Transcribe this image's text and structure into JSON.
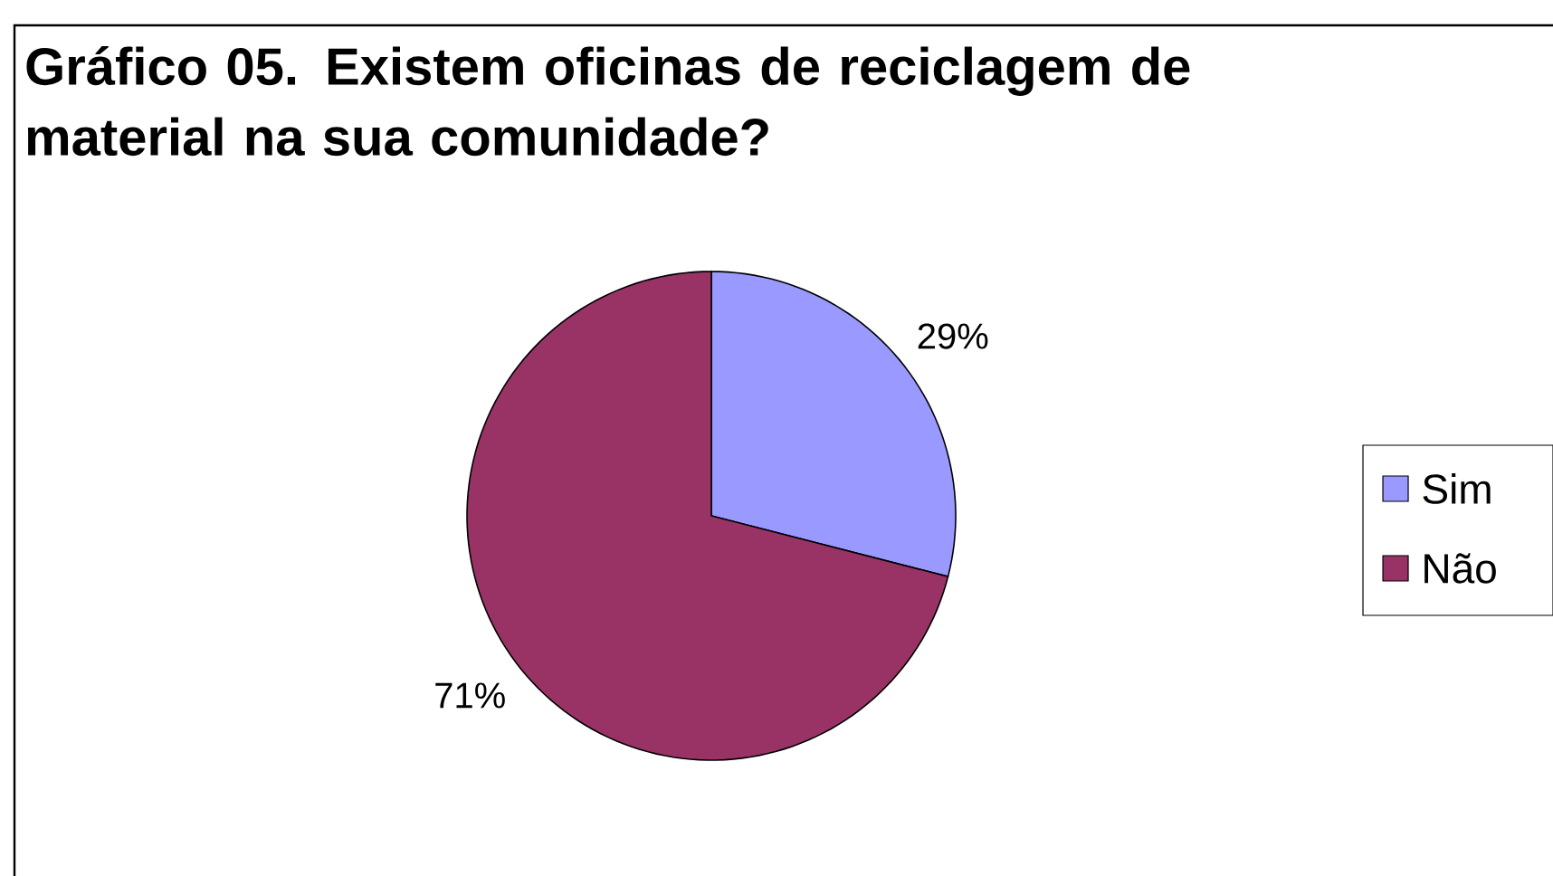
{
  "chart_data": {
    "type": "pie",
    "title": "Gráfico 05. Existem oficinas de reciclagem de material na sua comunidade?",
    "categories": [
      "Sim",
      "Não"
    ],
    "values": [
      29,
      71
    ],
    "colors": [
      "#9999ff",
      "#993366"
    ],
    "value_labels": [
      "29%",
      "71%"
    ],
    "legend": "right"
  }
}
